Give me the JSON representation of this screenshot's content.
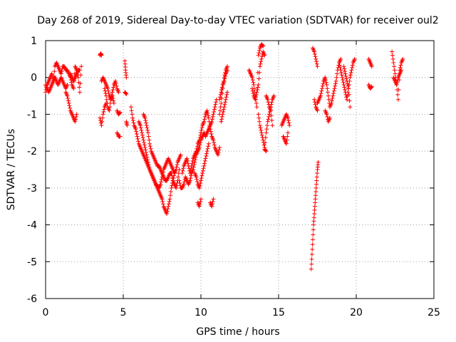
{
  "chart_data": {
    "type": "scatter",
    "title": "Day 268 of 2019, Sidereal Day-to-day VTEC variation (SDTVAR) for receiver oul2",
    "xlabel": "GPS time / hours",
    "ylabel": "SDTVAR / TECUs",
    "xlim": [
      0,
      25
    ],
    "ylim": [
      -6,
      1
    ],
    "xticks": [
      "0",
      "5",
      "10",
      "15",
      "20",
      "25"
    ],
    "yticks": [
      "1",
      "0",
      "-1",
      "-2",
      "-3",
      "-4",
      "-5",
      "-6"
    ],
    "grid": true,
    "marker": "+",
    "color": "#ff0000",
    "series": [
      {
        "name": "SDTVAR",
        "segments": [
          {
            "x": [
              0.0,
              0.1,
              0.2,
              0.3,
              0.4,
              0.5,
              0.6,
              0.7,
              0.8,
              0.9,
              1.0,
              1.1,
              1.2,
              1.3,
              1.4,
              1.5,
              1.6,
              1.7,
              1.8,
              1.9,
              2.0,
              2.1,
              2.2,
              2.3
            ],
            "y": [
              -0.4,
              -0.2,
              -0.1,
              0.0,
              0.1,
              -0.1,
              0.3,
              0.4,
              0.3,
              0.2,
              0.1,
              0.3,
              0.3,
              0.2,
              0.2,
              0.1,
              0.0,
              -0.2,
              -0.3,
              0.3,
              0.2,
              0.0,
              -0.4,
              0.3
            ]
          },
          {
            "x": [
              0.0,
              0.1,
              0.2,
              0.3,
              0.4,
              0.5,
              0.6,
              0.7,
              0.8,
              0.9,
              1.0,
              1.1,
              1.2,
              1.3,
              1.4
            ],
            "y": [
              -0.2,
              -0.3,
              -0.4,
              -0.3,
              -0.2,
              -0.1,
              0.0,
              -0.1,
              -0.2,
              -0.1,
              0.0,
              -0.1,
              -0.2,
              -0.3,
              -0.2
            ]
          },
          {
            "x": [
              1.3,
              1.4,
              1.5,
              1.6,
              1.7,
              1.8,
              1.9,
              2.0
            ],
            "y": [
              -0.4,
              -0.5,
              -0.7,
              -0.9,
              -1.0,
              -1.1,
              -1.2,
              -1.0
            ]
          },
          {
            "x": [
              1.6,
              1.7,
              1.8,
              1.9,
              2.0,
              2.1,
              2.2
            ],
            "y": [
              0.1,
              0.0,
              -0.1,
              0.0,
              0.1,
              0.2,
              0.2
            ]
          },
          {
            "x": [
              3.5,
              3.55,
              3.6
            ],
            "y": [
              0.6,
              0.65,
              0.6
            ]
          },
          {
            "x": [
              3.6,
              3.7,
              3.8,
              3.9,
              4.0,
              4.1,
              4.2,
              4.3,
              4.4,
              4.5,
              4.6,
              4.7
            ],
            "y": [
              -0.1,
              0.0,
              -0.1,
              -0.2,
              -0.3,
              -0.5,
              -0.6,
              -0.4,
              -0.2,
              -0.1,
              -0.3,
              -0.4
            ]
          },
          {
            "x": [
              3.8,
              3.9,
              4.0,
              4.1,
              4.2,
              4.3,
              4.4
            ],
            "y": [
              -0.3,
              -0.5,
              -0.8,
              -0.9,
              -0.6,
              -0.5,
              -0.7
            ]
          },
          {
            "x": [
              3.5,
              3.6,
              3.7,
              3.8,
              3.9
            ],
            "y": [
              -1.1,
              -1.3,
              -1.0,
              -0.8,
              -0.7
            ]
          },
          {
            "x": [
              4.6,
              4.7,
              4.8
            ],
            "y": [
              -0.9,
              -1.0,
              -0.95
            ]
          },
          {
            "x": [
              4.6,
              4.7,
              4.8
            ],
            "y": [
              -1.5,
              -1.6,
              -1.6
            ]
          },
          {
            "x": [
              5.1,
              5.15,
              5.2
            ],
            "y": [
              0.45,
              0.2,
              0.0
            ]
          },
          {
            "x": [
              5.1,
              5.2
            ],
            "y": [
              -0.4,
              -0.45
            ]
          },
          {
            "x": [
              5.2,
              5.25
            ],
            "y": [
              -1.2,
              -1.3
            ]
          },
          {
            "x": [
              5.5,
              5.6,
              5.7,
              5.8,
              5.9,
              6.0,
              6.1,
              6.2,
              6.3,
              6.4,
              6.5,
              6.6,
              6.7,
              6.8,
              6.9,
              7.0,
              7.1,
              7.2,
              7.3,
              7.4,
              7.5,
              7.6,
              7.7,
              7.8,
              7.9,
              8.0,
              8.1,
              8.2,
              8.3,
              8.4,
              8.5,
              8.6,
              8.7
            ],
            "y": [
              -0.8,
              -1.1,
              -1.3,
              -1.4,
              -1.6,
              -1.8,
              -1.9,
              -2.0,
              -2.1,
              -2.2,
              -2.3,
              -2.4,
              -2.5,
              -2.6,
              -2.7,
              -2.8,
              -2.9,
              -2.95,
              -3.0,
              -2.9,
              -2.7,
              -2.5,
              -2.4,
              -2.3,
              -2.2,
              -2.3,
              -2.4,
              -2.5,
              -2.6,
              -2.5,
              -2.3,
              -2.2,
              -2.1
            ]
          },
          {
            "x": [
              6.0,
              6.1,
              6.2,
              6.3,
              6.4,
              6.5,
              6.6,
              6.7,
              6.8,
              6.9,
              7.0,
              7.1,
              7.2,
              7.3,
              7.4,
              7.5,
              7.6,
              7.7,
              7.8,
              7.9,
              8.0,
              8.1,
              8.2,
              8.3
            ],
            "y": [
              -1.2,
              -1.3,
              -1.5,
              -1.7,
              -1.9,
              -2.1,
              -2.3,
              -2.5,
              -2.6,
              -2.7,
              -2.8,
              -2.9,
              -3.0,
              -3.1,
              -3.2,
              -3.3,
              -3.5,
              -3.6,
              -3.7,
              -3.5,
              -3.3,
              -3.0,
              -2.8,
              -2.6
            ]
          },
          {
            "x": [
              6.3,
              6.4,
              6.5,
              6.6,
              6.7,
              6.8,
              6.9,
              7.0,
              7.1,
              7.2,
              7.3,
              7.4,
              7.5,
              7.6,
              7.7,
              7.8,
              7.9,
              8.0,
              8.1,
              8.2,
              8.3,
              8.4,
              8.5,
              8.6
            ],
            "y": [
              -1.0,
              -1.1,
              -1.3,
              -1.5,
              -1.8,
              -2.0,
              -2.1,
              -2.2,
              -2.3,
              -2.4,
              -2.4,
              -2.5,
              -2.6,
              -2.7,
              -2.8,
              -2.8,
              -2.7,
              -2.6,
              -2.6,
              -2.8,
              -2.9,
              -3.0,
              -2.8,
              -2.5
            ]
          },
          {
            "x": [
              8.6,
              8.7,
              8.8,
              8.9,
              9.0,
              9.1,
              9.2,
              9.3,
              9.4,
              9.5,
              9.6,
              9.7,
              9.8,
              9.9,
              10.0,
              10.1,
              10.2,
              10.3,
              10.4,
              10.5,
              10.6,
              10.7,
              10.8,
              10.9,
              11.0
            ],
            "y": [
              -2.8,
              -3.0,
              -3.0,
              -2.9,
              -2.7,
              -2.8,
              -2.9,
              -2.8,
              -2.6,
              -2.5,
              -2.3,
              -2.1,
              -2.0,
              -1.9,
              -1.7,
              -1.6,
              -1.5,
              -1.6,
              -1.5,
              -1.4,
              -1.3,
              -1.2,
              -1.0,
              -0.8,
              -0.6
            ]
          },
          {
            "x": [
              8.8,
              8.9,
              9.0,
              9.1,
              9.2,
              9.3,
              9.4,
              9.5,
              9.6,
              9.7,
              9.8,
              9.9,
              10.0,
              10.1,
              10.2,
              10.3,
              10.4,
              10.5,
              10.6,
              10.7,
              10.8,
              10.9,
              11.0,
              11.1,
              11.2
            ],
            "y": [
              -2.6,
              -2.4,
              -2.3,
              -2.2,
              -2.4,
              -2.6,
              -2.4,
              -2.2,
              -2.1,
              -2.0,
              -1.8,
              -1.7,
              -1.5,
              -1.3,
              -1.2,
              -1.0,
              -0.9,
              -1.1,
              -1.4,
              -1.6,
              -1.7,
              -1.9,
              -2.0,
              -2.1,
              -1.9
            ]
          },
          {
            "x": [
              9.6,
              9.7,
              9.8,
              9.9,
              10.0,
              10.1,
              10.2,
              10.3,
              10.4,
              10.5
            ],
            "y": [
              -2.6,
              -2.7,
              -2.9,
              -3.0,
              -2.8,
              -2.6,
              -2.4,
              -2.2,
              -2.0,
              -1.8
            ]
          },
          {
            "x": [
              9.8,
              9.9,
              10.0
            ],
            "y": [
              -3.4,
              -3.5,
              -3.3
            ]
          },
          {
            "x": [
              10.6,
              10.7,
              10.8
            ],
            "y": [
              -3.4,
              -3.5,
              -3.3
            ]
          },
          {
            "x": [
              11.2,
              11.3,
              11.4,
              11.5,
              11.6,
              11.7
            ],
            "y": [
              -1.0,
              -0.7,
              -0.3,
              0.0,
              0.2,
              0.3
            ]
          },
          {
            "x": [
              11.2,
              11.3,
              11.4,
              11.5,
              11.6,
              11.7
            ],
            "y": [
              -0.6,
              -0.4,
              -0.2,
              -0.1,
              0.1,
              0.2
            ]
          },
          {
            "x": [
              11.3,
              11.4,
              11.5,
              11.6,
              11.7
            ],
            "y": [
              -1.2,
              -1.0,
              -0.8,
              -0.6,
              -0.4
            ]
          },
          {
            "x": [
              13.1,
              13.2,
              13.3,
              13.4,
              13.5,
              13.6,
              13.7,
              13.8,
              13.9,
              14.0
            ],
            "y": [
              0.2,
              0.1,
              0.0,
              -0.2,
              -0.5,
              -0.8,
              0.6,
              0.8,
              0.9,
              0.85
            ]
          },
          {
            "x": [
              13.3,
              13.4,
              13.5,
              13.6,
              13.7,
              13.8,
              13.9,
              14.0,
              14.1
            ],
            "y": [
              -0.3,
              -0.5,
              -0.6,
              -0.4,
              -0.2,
              0.3,
              0.5,
              0.7,
              0.6
            ]
          },
          {
            "x": [
              13.7,
              13.8,
              13.9,
              14.0,
              14.1,
              14.2,
              14.3,
              14.4,
              14.5,
              14.6,
              14.7
            ],
            "y": [
              -1.0,
              -1.3,
              -1.5,
              -1.7,
              -1.9,
              -1.5,
              -1.2,
              -1.0,
              -0.8,
              -0.6,
              -0.5
            ]
          },
          {
            "x": [
              14.2,
              14.3,
              14.4,
              14.5,
              14.6
            ],
            "y": [
              -0.5,
              -0.6,
              -0.8,
              -0.9,
              -1.3
            ]
          },
          {
            "x": [
              14.1,
              14.2
            ],
            "y": [
              -1.95,
              -2.0
            ]
          },
          {
            "x": [
              15.2,
              15.3,
              15.4,
              15.5,
              15.6,
              15.7
            ],
            "y": [
              -1.3,
              -1.2,
              -1.1,
              -1.0,
              -1.1,
              -1.3
            ]
          },
          {
            "x": [
              15.3,
              15.4,
              15.5,
              15.6
            ],
            "y": [
              -1.6,
              -1.7,
              -1.8,
              -1.5
            ]
          },
          {
            "x": [
              17.1,
              17.15,
              17.2,
              17.25,
              17.3,
              17.35,
              17.4,
              17.45,
              17.5,
              17.55
            ],
            "y": [
              -5.2,
              -4.8,
              -4.4,
              -4.0,
              -3.7,
              -3.4,
              -3.1,
              -2.8,
              -2.5,
              -2.3
            ]
          },
          {
            "x": [
              17.2,
              17.3,
              17.4,
              17.5
            ],
            "y": [
              0.8,
              0.7,
              0.5,
              0.3
            ]
          },
          {
            "x": [
              17.3,
              17.4,
              17.5
            ],
            "y": [
              -0.6,
              -0.8,
              -0.9
            ]
          },
          {
            "x": [
              17.5,
              17.6,
              17.7,
              17.8,
              17.9,
              18.0,
              18.1,
              18.2,
              18.3,
              18.4,
              18.5,
              18.6,
              18.7,
              18.8,
              18.9,
              19.0
            ],
            "y": [
              -0.7,
              -0.6,
              -0.5,
              -0.3,
              -0.1,
              0.0,
              -0.2,
              -0.5,
              -0.8,
              -0.7,
              -0.5,
              -0.3,
              -0.1,
              0.2,
              0.4,
              0.5
            ]
          },
          {
            "x": [
              18.0,
              18.1,
              18.2,
              18.3
            ],
            "y": [
              -0.9,
              -1.0,
              -1.2,
              -1.1
            ]
          },
          {
            "x": [
              18.9,
              19.0,
              19.1,
              19.2,
              19.3,
              19.4,
              19.5,
              19.6,
              19.7,
              19.8,
              19.9
            ],
            "y": [
              0.4,
              0.2,
              0.0,
              -0.2,
              -0.4,
              -0.6,
              -0.3,
              0.0,
              0.2,
              0.4,
              0.5
            ]
          },
          {
            "x": [
              19.2,
              19.3,
              19.4,
              19.5,
              19.6
            ],
            "y": [
              0.3,
              0.1,
              -0.1,
              -0.3,
              -0.8
            ]
          },
          {
            "x": [
              20.8,
              20.9,
              21.0
            ],
            "y": [
              0.5,
              0.4,
              0.3
            ]
          },
          {
            "x": [
              20.8,
              20.9,
              21.0
            ],
            "y": [
              -0.2,
              -0.3,
              -0.25
            ]
          },
          {
            "x": [
              22.3,
              22.4,
              22.5,
              22.6,
              22.7,
              22.8,
              22.9,
              23.0
            ],
            "y": [
              0.7,
              0.4,
              0.1,
              -0.2,
              -0.6,
              0.2,
              0.4,
              0.5
            ]
          },
          {
            "x": [
              22.4,
              22.5,
              22.6,
              22.7,
              22.8,
              22.9
            ],
            "y": [
              0.0,
              -0.1,
              -0.2,
              0.0,
              0.1,
              0.2
            ]
          }
        ]
      }
    ]
  }
}
